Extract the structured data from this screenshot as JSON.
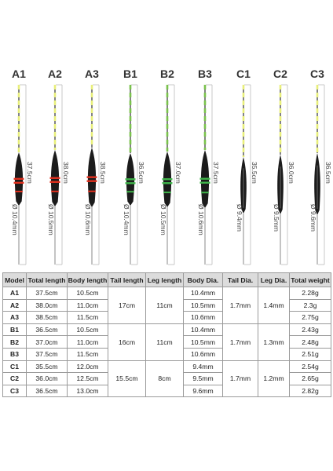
{
  "floats": [
    {
      "model": "A1",
      "length": "37.5cm",
      "dia": "Ø 10.4mm",
      "band": "#e0301e"
    },
    {
      "model": "A2",
      "length": "38.0cm",
      "dia": "Ø 10.5mm",
      "band": "#e0301e"
    },
    {
      "model": "A3",
      "length": "38.5cm",
      "dia": "Ø 10.6mm",
      "band": "#e0301e"
    },
    {
      "model": "B1",
      "length": "36.5cm",
      "dia": "Ø 10.4mm",
      "band": "#3fb34a"
    },
    {
      "model": "B2",
      "length": "37.0cm",
      "dia": "Ø 10.5mm",
      "band": "#3fb34a"
    },
    {
      "model": "B3",
      "length": "37.5cm",
      "dia": "Ø 10.6mm",
      "band": "#3fb34a"
    },
    {
      "model": "C1",
      "length": "35.5cm",
      "dia": "Ø 9.4mm",
      "band": ""
    },
    {
      "model": "C2",
      "length": "36.0cm",
      "dia": "Ø 9.5mm",
      "band": ""
    },
    {
      "model": "C3",
      "length": "36.5cm",
      "dia": "Ø 9.6mm",
      "band": ""
    }
  ],
  "colors": {
    "tip_yellow": "#e8ef7a",
    "tip_green": "#79c24b",
    "body": "#1b1b1b"
  },
  "table": {
    "headers": [
      "Model",
      "Total length",
      "Body length",
      "Tail length",
      "Leg length",
      "Body Dia.",
      "Tail Dia.",
      "Leg Dia.",
      "Total weight"
    ],
    "rows": [
      {
        "model": "A1",
        "total": "37.5cm",
        "body": "10.5cm",
        "dia": "10.4mm",
        "weight": "2.28g"
      },
      {
        "model": "A2",
        "total": "38.0cm",
        "body": "11.0cm",
        "dia": "10.5mm",
        "weight": "2.3g"
      },
      {
        "model": "A3",
        "total": "38.5cm",
        "body": "11.5cm",
        "dia": "10.6mm",
        "weight": "2.75g"
      },
      {
        "model": "B1",
        "total": "36.5cm",
        "body": "10.5cm",
        "dia": "10.4mm",
        "weight": "2.43g"
      },
      {
        "model": "B2",
        "total": "37.0cm",
        "body": "11.0cm",
        "dia": "10.5mm",
        "weight": "2.48g"
      },
      {
        "model": "B3",
        "total": "37.5cm",
        "body": "11.5cm",
        "dia": "10.6mm",
        "weight": "2.51g"
      },
      {
        "model": "C1",
        "total": "35.5cm",
        "body": "12.0cm",
        "dia": "9.4mm",
        "weight": "2.54g"
      },
      {
        "model": "C2",
        "total": "36.0cm",
        "body": "12.5cm",
        "dia": "9.5mm",
        "weight": "2.65g"
      },
      {
        "model": "C3",
        "total": "36.5cm",
        "body": "13.0cm",
        "dia": "9.6mm",
        "weight": "2.82g"
      }
    ],
    "groups": [
      {
        "tail": "17cm",
        "leg": "11cm",
        "tail_dia": "1.7mm",
        "leg_dia": "1.4mm"
      },
      {
        "tail": "16cm",
        "leg": "11cm",
        "tail_dia": "1.7mm",
        "leg_dia": "1.3mm"
      },
      {
        "tail": "15.5cm",
        "leg": "8cm",
        "tail_dia": "1.7mm",
        "leg_dia": "1.2mm"
      }
    ]
  }
}
